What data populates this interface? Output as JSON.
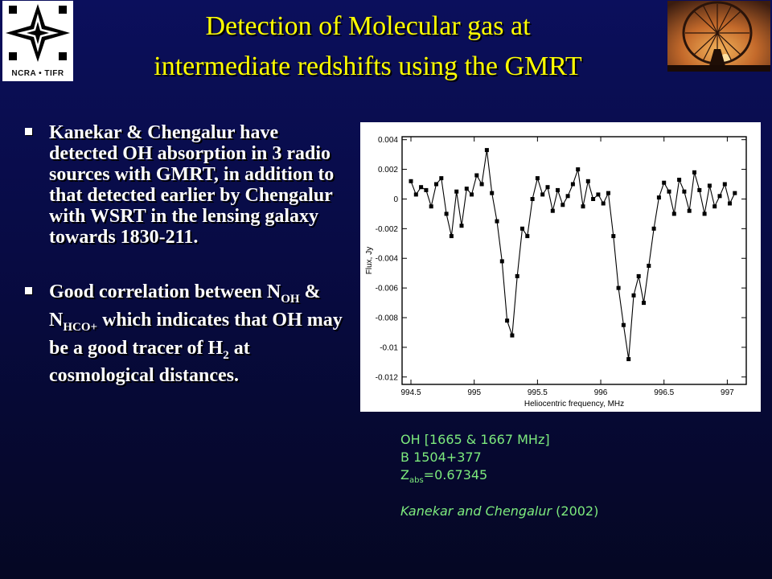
{
  "logo": {
    "text": "NCRA • TIFR"
  },
  "photo": {
    "icon": "radio-telescope-photo"
  },
  "title": {
    "line1": "Detection  of  Molecular  gas  at",
    "line2": "intermediate  redshifts  using  the  GMRT"
  },
  "bullets": [
    {
      "text": "Kanekar & Chengalur have detected OH absorption in 3 radio sources with GMRT, in addition to that detected earlier by Chengalur with WSRT in the lensing galaxy towards 1830-211."
    },
    {
      "pre": "Good correlation between N",
      "sub1": "OH",
      "mid1": " & N",
      "sub2": "HCO+",
      "mid2": " which indicates that OH may be a good tracer of H",
      "sub3": "2",
      "post": " at cosmological distances."
    }
  ],
  "caption": {
    "line1": "OH [1665 & 1667 MHz]",
    "line2": "B 1504+377",
    "z_main": "Z",
    "z_sub": "abs",
    "z_val": "=0.67345",
    "cite_names": "Kanekar and  Chengalur",
    "cite_year": "  (2002)"
  },
  "chart_data": {
    "type": "line",
    "xlabel": "Heliocentric frequency, MHz",
    "ylabel": "Flux, Jy",
    "xlim": [
      994.43,
      997.15
    ],
    "ylim": [
      -0.0125,
      0.0042
    ],
    "xticks": [
      994.5,
      995,
      995.5,
      996,
      996.5,
      997
    ],
    "xtick_labels": [
      "994.5",
      "995",
      "995.5",
      "996",
      "996.5",
      "997"
    ],
    "yticks": [
      0.004,
      0.002,
      0,
      -0.002,
      -0.004,
      -0.006,
      -0.008,
      -0.01,
      -0.012
    ],
    "ytick_labels": [
      "0.004",
      "0.002",
      "0",
      "-0.002",
      "-0.004",
      "-0.006",
      "-0.008",
      "-0.01",
      "-0.012"
    ],
    "series": [
      {
        "x": [
          994.5,
          994.54,
          994.58,
          994.62,
          994.66,
          994.7,
          994.74,
          994.78,
          994.82,
          994.86,
          994.9,
          994.94,
          994.98,
          995.02,
          995.06,
          995.1,
          995.14,
          995.18,
          995.22,
          995.26,
          995.3,
          995.34,
          995.38,
          995.42,
          995.46,
          995.5,
          995.54,
          995.58,
          995.62,
          995.66,
          995.7,
          995.74,
          995.78,
          995.82,
          995.86,
          995.9,
          995.94,
          995.98,
          996.02,
          996.06,
          996.1,
          996.14,
          996.18,
          996.22,
          996.26,
          996.3,
          996.34,
          996.38,
          996.42,
          996.46,
          996.5,
          996.54,
          996.58,
          996.62,
          996.66,
          996.7,
          996.74,
          996.78,
          996.82,
          996.86,
          996.9,
          996.94,
          996.98,
          997.02,
          997.06
        ],
        "y": [
          0.0012,
          0.0003,
          0.0008,
          0.0006,
          -0.0005,
          0.001,
          0.0014,
          -0.001,
          -0.0025,
          0.0005,
          -0.0018,
          0.0007,
          0.0003,
          0.0016,
          0.001,
          0.0033,
          0.0004,
          -0.0015,
          -0.0042,
          -0.0082,
          -0.0092,
          -0.0052,
          -0.002,
          -0.0025,
          0.0,
          0.0014,
          0.0003,
          0.0008,
          -0.0008,
          0.0006,
          -0.0004,
          0.0002,
          0.001,
          0.002,
          -0.0005,
          0.0012,
          0.0,
          0.0003,
          -0.0003,
          0.0004,
          -0.0025,
          -0.006,
          -0.0085,
          -0.0108,
          -0.0065,
          -0.0052,
          -0.007,
          -0.0045,
          -0.002,
          0.0001,
          0.0011,
          0.0005,
          -0.001,
          0.0013,
          0.0005,
          -0.0008,
          0.0018,
          0.0006,
          -0.001,
          0.0009,
          -0.0005,
          0.0002,
          0.001,
          -0.0003,
          0.0004
        ]
      }
    ]
  }
}
